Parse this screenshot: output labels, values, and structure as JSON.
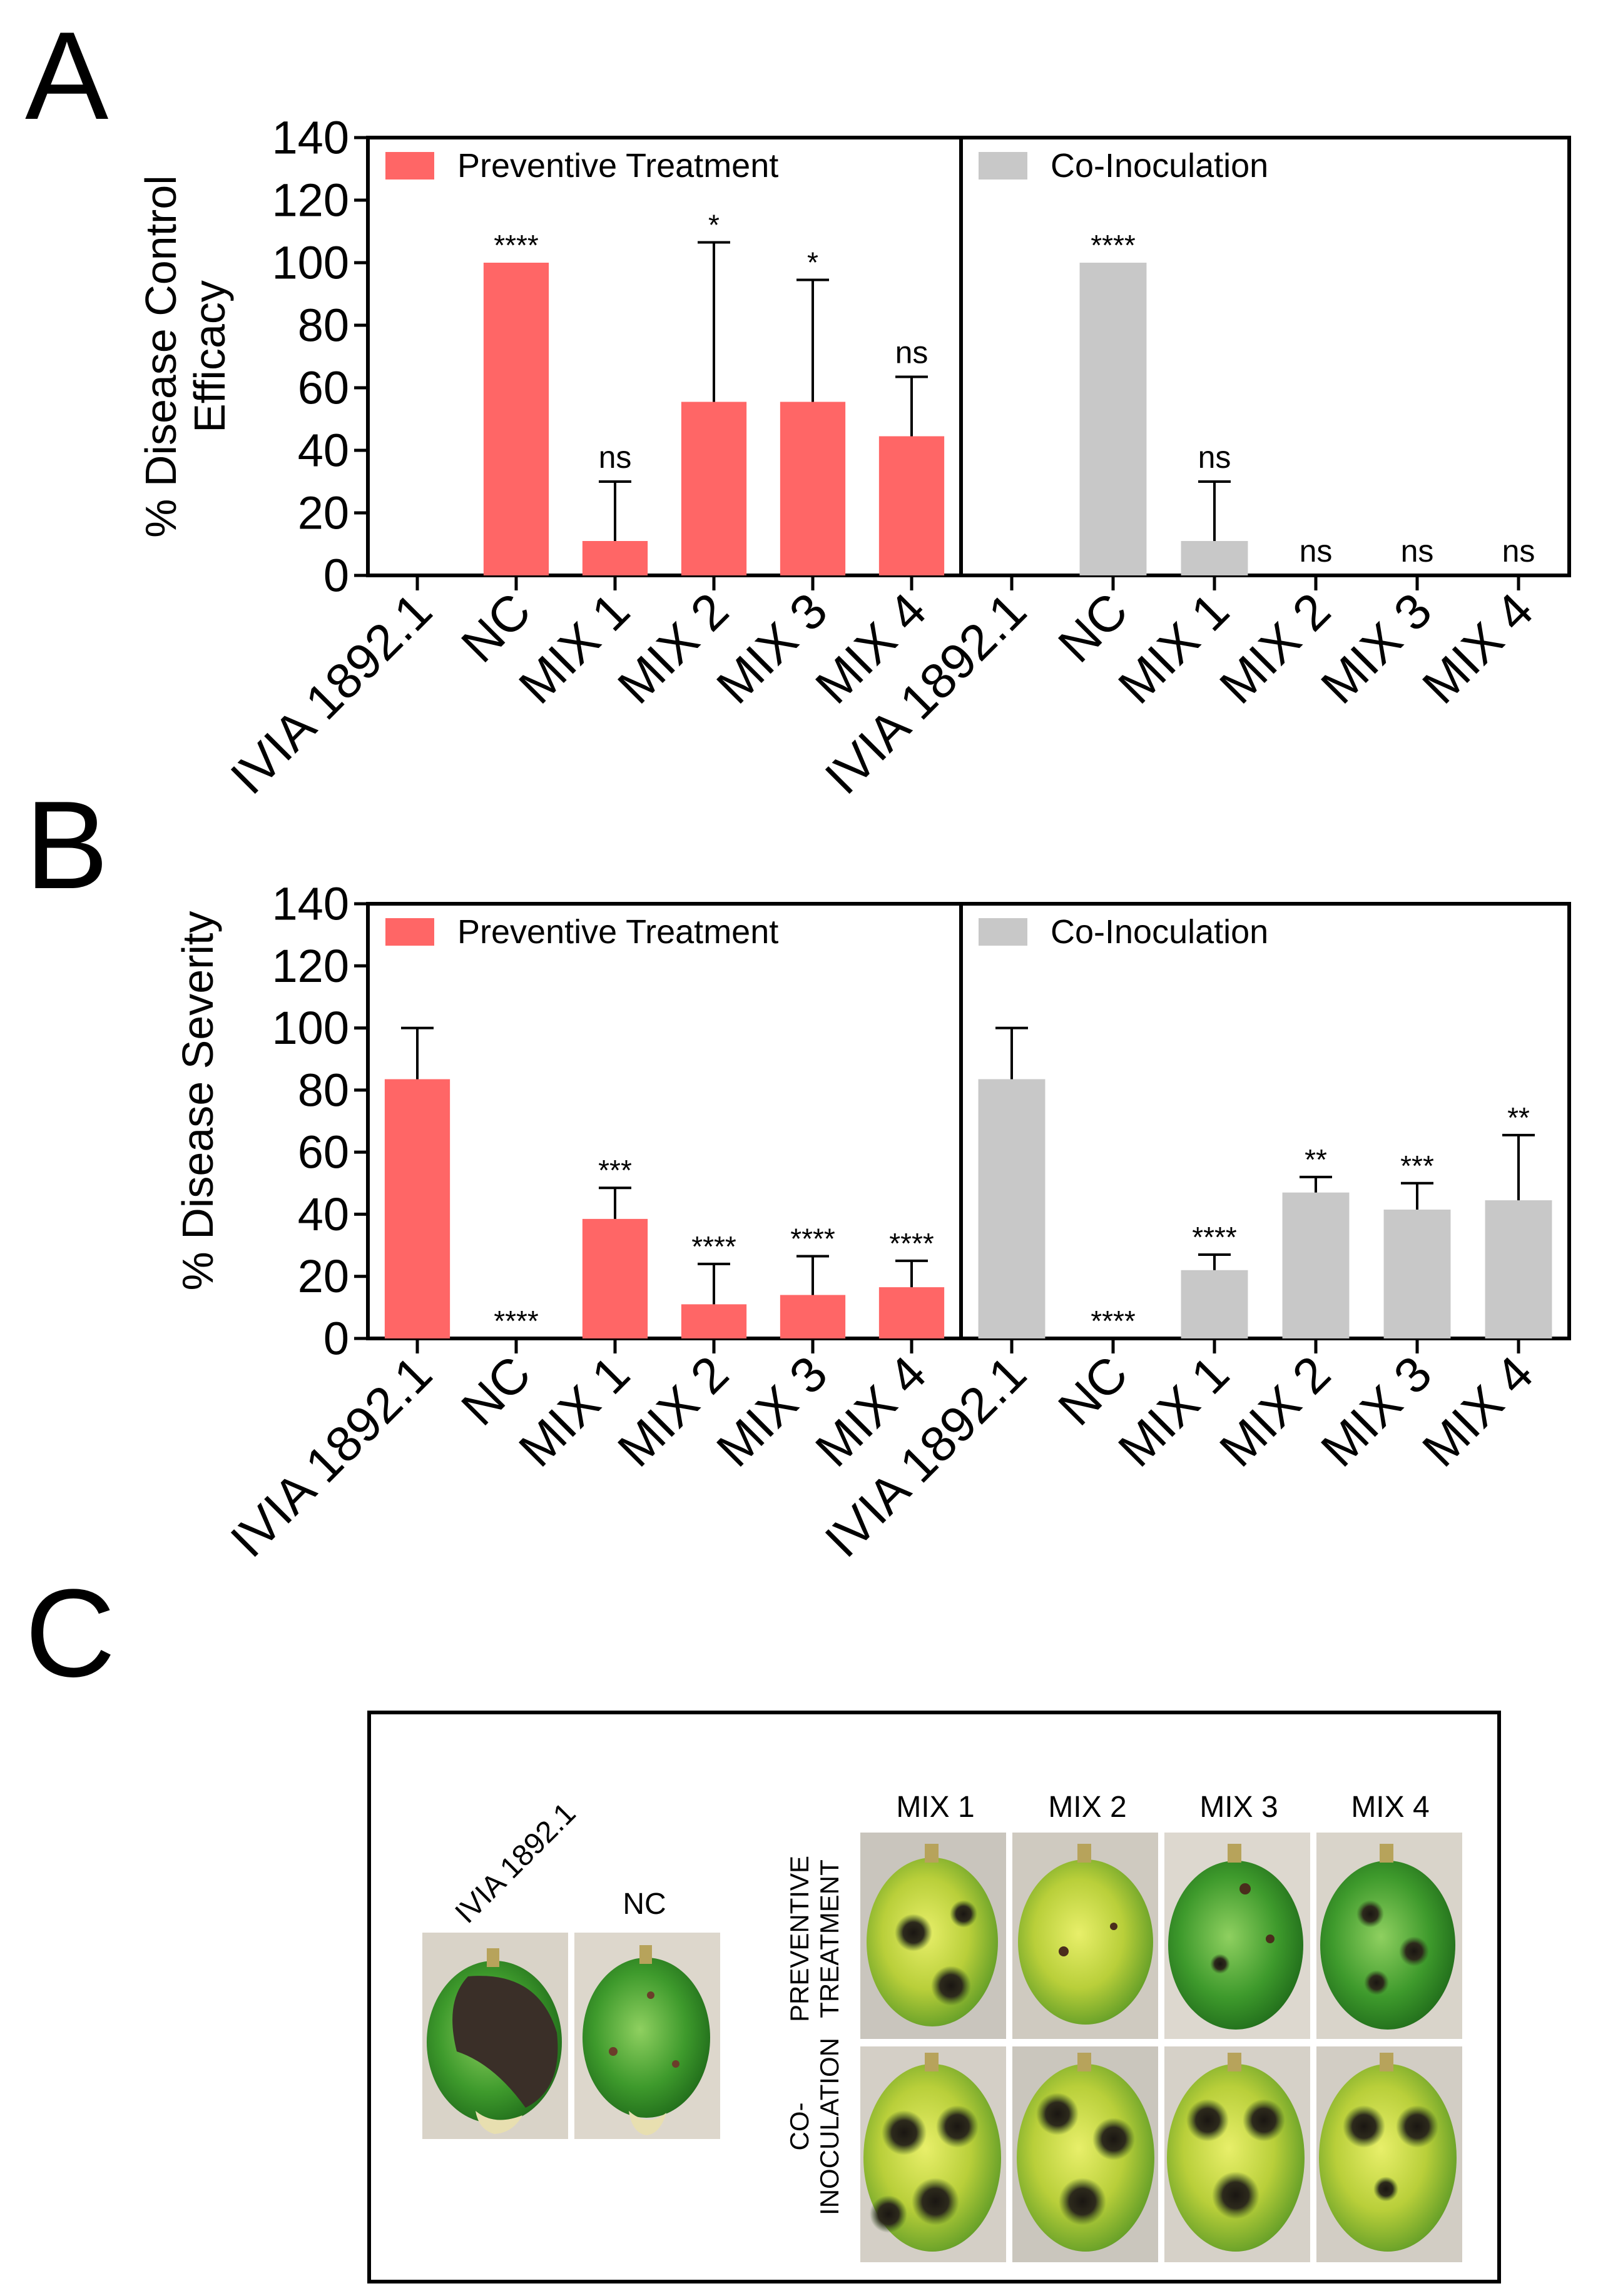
{
  "panel_letters": [
    "A",
    "B",
    "C"
  ],
  "colors": {
    "preventive": "#ff6666",
    "coinoculation": "#c8c8c8"
  },
  "chart_data": [
    {
      "id": "A",
      "type": "bar",
      "ylabel": "% Disease Control Efficacy",
      "ylabel_lines": [
        "% Disease Control",
        "Efficacy"
      ],
      "ylim": [
        0,
        140
      ],
      "yticks": [
        "0",
        "20",
        "40",
        "60",
        "80",
        "100",
        "120",
        "140"
      ],
      "categories": [
        "IVIA 1892.1",
        "NC",
        "MIX 1",
        "MIX 2",
        "MIX 3",
        "MIX 4"
      ],
      "grid": false,
      "legend_position": "top-left of each sub-panel",
      "series": [
        {
          "name": "Preventive Treatment",
          "values": [
            0,
            100,
            11,
            55.5,
            55.5,
            44.5
          ],
          "errors": [
            0,
            0,
            19,
            51,
            39,
            19
          ],
          "significance": [
            "",
            "****",
            "ns",
            "*",
            "*",
            "ns"
          ]
        },
        {
          "name": "Co-Inoculation",
          "values": [
            0,
            100,
            11,
            0,
            0,
            0
          ],
          "errors": [
            0,
            0,
            19,
            0,
            0,
            0
          ],
          "significance": [
            "",
            "****",
            "ns",
            "ns",
            "ns",
            "ns"
          ]
        }
      ]
    },
    {
      "id": "B",
      "type": "bar",
      "ylabel": "% Disease Severity",
      "ylabel_lines": [
        "% Disease Severity"
      ],
      "ylim": [
        0,
        140
      ],
      "yticks": [
        "0",
        "20",
        "40",
        "60",
        "80",
        "100",
        "120",
        "140"
      ],
      "categories": [
        "IVIA 1892.1",
        "NC",
        "MIX 1",
        "MIX 2",
        "MIX 3",
        "MIX 4"
      ],
      "grid": false,
      "legend_position": "top-left of each sub-panel",
      "series": [
        {
          "name": "Preventive Treatment",
          "values": [
            83.5,
            0,
            38.5,
            11,
            14,
            16.5
          ],
          "errors": [
            16.5,
            0,
            10,
            13,
            12.5,
            8.5
          ],
          "significance": [
            "",
            "****",
            "***",
            "****",
            "****",
            "****"
          ]
        },
        {
          "name": "Co-Inoculation",
          "values": [
            83.5,
            0,
            22,
            47,
            41.5,
            44.5
          ],
          "errors": [
            16.5,
            0,
            5,
            5,
            8.5,
            21
          ],
          "significance": [
            "",
            "****",
            "****",
            "**",
            "***",
            "**"
          ]
        }
      ]
    }
  ],
  "photo_panel": {
    "left_labels": [
      "IVIA 1892.1",
      "NC"
    ],
    "column_labels": [
      "MIX 1",
      "MIX 2",
      "MIX 3",
      "MIX 4"
    ],
    "row_labels": [
      {
        "line1": "PREVENTIVE",
        "line2": "TREATMENT"
      },
      {
        "line1": "CO-",
        "line2": "INOCULATION"
      }
    ]
  }
}
